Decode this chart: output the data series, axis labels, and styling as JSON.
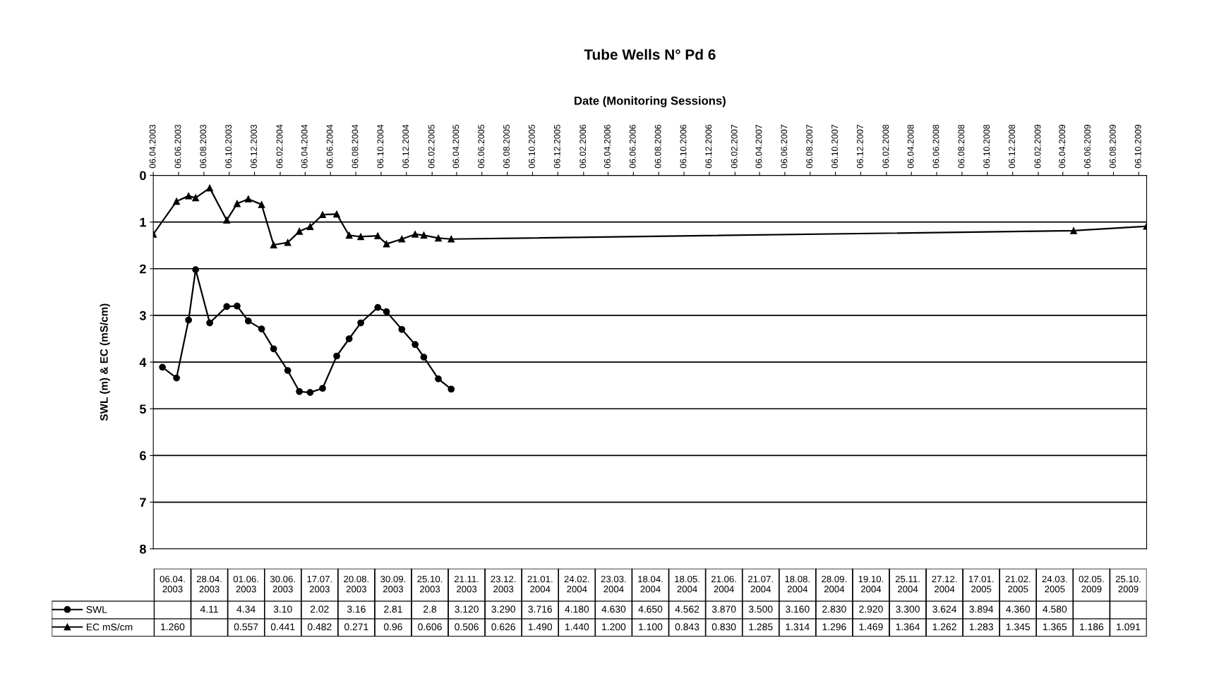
{
  "chart_data": {
    "type": "line",
    "title": "Tube Wells N° Pd 6",
    "xlabel": "Date (Monitoring Sessions)",
    "ylabel": "SWL (m) & EC (mS/cm)",
    "x": [
      "2003-04-06",
      "2003-04-28",
      "2003-06-01",
      "2003-06-30",
      "2003-07-17",
      "2003-08-20",
      "2003-09-30",
      "2003-10-25",
      "2003-11-21",
      "2003-12-23",
      "2004-01-21",
      "2004-02-24",
      "2004-03-23",
      "2004-04-18",
      "2004-05-18",
      "2004-06-21",
      "2004-07-21",
      "2004-08-18",
      "2004-09-28",
      "2004-10-19",
      "2004-11-25",
      "2004-12-27",
      "2005-01-17",
      "2005-02-21",
      "2005-03-24",
      "2009-05-02",
      "2009-10-25"
    ],
    "series": [
      {
        "name": "SWL",
        "color": "#000000",
        "marker": "circle",
        "values": [
          null,
          4.11,
          4.34,
          3.1,
          2.02,
          3.16,
          2.81,
          2.8,
          3.12,
          3.29,
          3.716,
          4.18,
          4.63,
          4.65,
          4.562,
          3.87,
          3.5,
          3.16,
          2.83,
          2.92,
          3.3,
          3.624,
          3.894,
          4.36,
          4.58,
          null,
          null
        ]
      },
      {
        "name": "EC mS/cm",
        "color": "#000000",
        "marker": "triangle",
        "values": [
          1.26,
          null,
          0.557,
          0.441,
          0.482,
          0.271,
          0.96,
          0.606,
          0.506,
          0.626,
          1.49,
          1.44,
          1.2,
          1.1,
          0.843,
          0.83,
          1.285,
          1.314,
          1.296,
          1.469,
          1.364,
          1.262,
          1.283,
          1.345,
          1.365,
          1.186,
          1.091
        ]
      }
    ],
    "xlim": [
      "2003-04-06",
      "2009-10-25"
    ],
    "xticks": [
      {
        "value": "2003-04-06",
        "label": "06.04.2003"
      },
      {
        "value": "2003-06-06",
        "label": "06.06.2003"
      },
      {
        "value": "2003-08-06",
        "label": "06.08.2003"
      },
      {
        "value": "2003-10-06",
        "label": "06.10.2003"
      },
      {
        "value": "2003-12-06",
        "label": "06.12.2003"
      },
      {
        "value": "2004-02-06",
        "label": "06.02.2004"
      },
      {
        "value": "2004-04-06",
        "label": "06.04.2004"
      },
      {
        "value": "2004-06-06",
        "label": "06.06.2004"
      },
      {
        "value": "2004-08-06",
        "label": "06.08.2004"
      },
      {
        "value": "2004-10-06",
        "label": "06.10.2004"
      },
      {
        "value": "2004-12-06",
        "label": "06.12.2004"
      },
      {
        "value": "2005-02-06",
        "label": "06.02.2005"
      },
      {
        "value": "2005-04-06",
        "label": "06.04.2005"
      },
      {
        "value": "2005-06-06",
        "label": "06.06.2005"
      },
      {
        "value": "2005-08-06",
        "label": "06.08.2005"
      },
      {
        "value": "2005-10-06",
        "label": "06.10.2005"
      },
      {
        "value": "2005-12-06",
        "label": "06.12.2005"
      },
      {
        "value": "2006-02-06",
        "label": "06.02.2006"
      },
      {
        "value": "2006-04-06",
        "label": "06.04.2006"
      },
      {
        "value": "2006-06-06",
        "label": "06.06.2006"
      },
      {
        "value": "2006-08-06",
        "label": "06.08.2006"
      },
      {
        "value": "2006-10-06",
        "label": "06.10.2006"
      },
      {
        "value": "2006-12-06",
        "label": "06.12.2006"
      },
      {
        "value": "2007-02-06",
        "label": "06.02.2007"
      },
      {
        "value": "2007-04-06",
        "label": "06.04.2007"
      },
      {
        "value": "2007-06-06",
        "label": "06.06.2007"
      },
      {
        "value": "2007-08-06",
        "label": "06.08.2007"
      },
      {
        "value": "2007-10-06",
        "label": "06.10.2007"
      },
      {
        "value": "2007-12-06",
        "label": "06.12.2007"
      },
      {
        "value": "2008-02-06",
        "label": "06.02.2008"
      },
      {
        "value": "2008-04-06",
        "label": "06.04.2008"
      },
      {
        "value": "2008-06-06",
        "label": "06.06.2008"
      },
      {
        "value": "2008-08-06",
        "label": "06.08.2008"
      },
      {
        "value": "2008-10-06",
        "label": "06.10.2008"
      },
      {
        "value": "2008-12-06",
        "label": "06.12.2008"
      },
      {
        "value": "2009-02-06",
        "label": "06.02.2009"
      },
      {
        "value": "2009-04-06",
        "label": "06.04.2009"
      },
      {
        "value": "2009-06-06",
        "label": "06.06.2009"
      },
      {
        "value": "2009-08-06",
        "label": "06.08.2009"
      },
      {
        "value": "2009-10-06",
        "label": "06.10.2009"
      }
    ],
    "annotations": [
      "06.04.\n2003",
      "28.04.\n2003",
      "01.06.\n2003",
      "30.06.\n2003",
      "17.07.\n2003",
      "20.08.\n2003",
      "30.09.\n2003",
      "25.10.\n2003",
      "21.11.\n2003",
      "23.12.\n2003",
      "21.01.\n2004",
      "24.02.\n2004",
      "23.03.\n2004",
      "18.04.\n2004",
      "18.05.\n2004",
      "21.06.\n2004",
      "21.07.\n2004",
      "18.08.\n2004",
      "28.09.\n2004",
      "19.10.\n2004",
      "25.11.\n2004",
      "27.12.\n2004",
      "17.01.\n2005",
      "21.02.\n2005",
      "24.03.\n2005",
      "02.05.\n2009",
      "25.10.\n2009",
      "4.11",
      "4.34",
      "3.10",
      "2.02",
      "3.16",
      "2.81",
      "2.8",
      "3.120",
      "3.290",
      "3.716",
      "4.180",
      "4.630",
      "4.650",
      "4.562",
      "3.870",
      "3.500",
      "3.160",
      "2.830",
      "2.920",
      "3.300",
      "3.624",
      "3.894",
      "4.360",
      "4.580",
      "1.260",
      "0.557",
      "0.441",
      "0.482",
      "0.271",
      "0.96",
      "0.606",
      "0.506",
      "0.626",
      "1.490",
      "1.440",
      "1.200",
      "1.100",
      "0.843",
      "0.830",
      "1.285",
      "1.314",
      "1.296",
      "1.469",
      "1.364",
      "1.262",
      "1.283",
      "1.345",
      "1.365",
      "1.186",
      "1.091"
    ],
    "ylim": [
      8,
      0
    ],
    "yticks": [
      0,
      1,
      2,
      3,
      4,
      5,
      6,
      7,
      8
    ],
    "grid": "y",
    "legend": "bottom left"
  }
}
